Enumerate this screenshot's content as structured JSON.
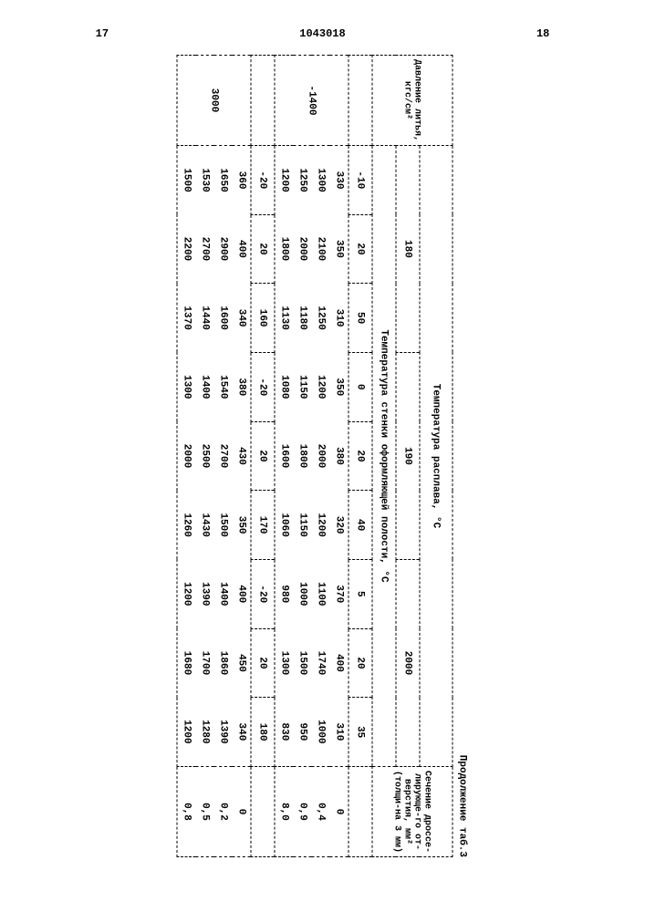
{
  "page_left": "17",
  "doc_num": "1043018",
  "page_right": "18",
  "caption": "Продолжение таб.3",
  "left_header": "Давление литья, кгс/см²",
  "mid_header1": "Температура расплава, °С",
  "melt_temps": [
    "180",
    "190",
    "2000"
  ],
  "mid_header2": "Температура стенки оформляющей полости, °С",
  "wall_temps": [
    "-10",
    "20",
    "50",
    "0",
    "20",
    "40",
    "5",
    "20",
    "35"
  ],
  "right_header": "Сечение дроссе-лирующе-го от-верстия, мм² (толщи-на 3 мм)",
  "block1": {
    "pressure": "-1400",
    "rows": [
      {
        "cells": [
          "330",
          "350",
          "310",
          "350",
          "380",
          "320",
          "370",
          "400",
          "310"
        ],
        "sec": "0"
      },
      {
        "cells": [
          "1300",
          "2100",
          "1250",
          "1200",
          "2000",
          "1200",
          "1100",
          "1740",
          "1000"
        ],
        "sec": "0,4"
      },
      {
        "cells": [
          "1250",
          "2000",
          "1180",
          "1150",
          "1800",
          "1150",
          "1000",
          "1500",
          "950"
        ],
        "sec": "0,9"
      },
      {
        "cells": [
          "1200",
          "1800",
          "1130",
          "1080",
          "1600",
          "1060",
          "980",
          "1300",
          "830"
        ],
        "sec": "8,0"
      }
    ]
  },
  "block2": {
    "pressure": "3000",
    "sub_temps": [
      "-20",
      "20",
      "160",
      "-20",
      "20",
      "170",
      "-20",
      "20",
      "180"
    ],
    "rows": [
      {
        "cells": [
          "360",
          "400",
          "340",
          "380",
          "430",
          "350",
          "400",
          "450",
          "340"
        ],
        "sec": "0"
      },
      {
        "cells": [
          "1650",
          "2900",
          "1600",
          "1540",
          "2700",
          "1500",
          "1400",
          "1860",
          "1390"
        ],
        "sec": "0,2"
      },
      {
        "cells": [
          "1530",
          "2700",
          "1440",
          "1400",
          "2500",
          "1430",
          "1390",
          "1700",
          "1280"
        ],
        "sec": "0,5"
      },
      {
        "cells": [
          "1500",
          "2200",
          "1370",
          "1300",
          "2000",
          "1260",
          "1200",
          "1680",
          "1200"
        ],
        "sec": "0,8"
      }
    ]
  }
}
